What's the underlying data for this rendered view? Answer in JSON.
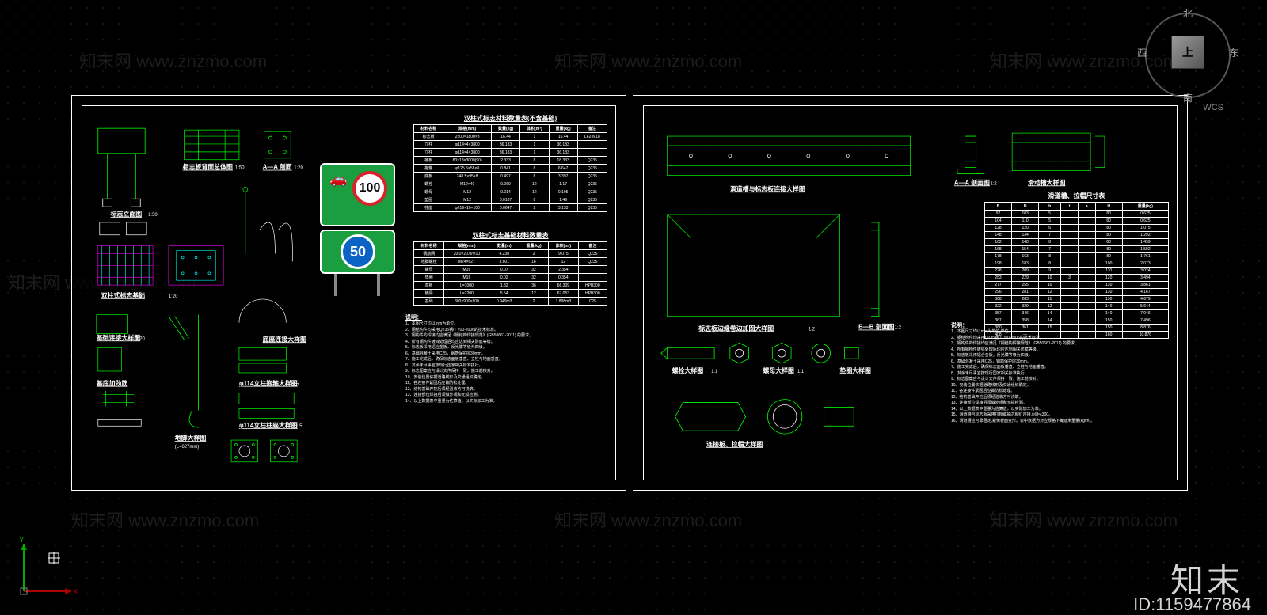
{
  "navcube": {
    "n": "北",
    "s": "南",
    "e": "东",
    "w": "西",
    "top": "上"
  },
  "wcs": "WCS",
  "ucs": {
    "x": "X",
    "y": "Y"
  },
  "watermark": {
    "brand": "知末",
    "id_prefix": "ID:",
    "id": "1159477864",
    "ghost": "知末网 www.znzmo.com"
  },
  "sheet1": {
    "titles": {
      "elevation": "标志立面图",
      "elevation_scale": "1:50",
      "plate_back": "标志板背面总体图",
      "plate_back_scale": "1:50",
      "section_a": "A—A 剖面",
      "section_a_scale": "1:20",
      "foundation": "双柱式标志基础",
      "foundation_scale": "1:20",
      "base_detail": "基础连接大样图",
      "base_detail_scale": "1:20",
      "anchor": "地脚大样图",
      "anchor_scale": "(L=627mm)",
      "reinforce": "基底加劲筋",
      "flange_col": "φ114立柱抱箍大样图",
      "flange_col_scale": "1:5",
      "flange_base": "φ114立柱柱座大样图",
      "flange_base_scale": "1:5",
      "bottom_flange": "底座连接大样图",
      "notes_head": "说明：",
      "table1_head": "双柱式标志材料数量表(不含基础)",
      "table2_head": "双柱式标志基础材料数量表",
      "t1_cols": [
        "材料名称",
        "规格(mm)",
        "数量(kg)",
        "体积(m³)",
        "重量(kg)",
        "备注"
      ],
      "t2_cols": [
        "材料名称",
        "规格(mm)",
        "数量(m)",
        "重量(kg)",
        "体积(m³)",
        "备注"
      ]
    },
    "sign": {
      "car_glyph": "🚗",
      "limit_big": "100",
      "limit_small": "50"
    },
    "table1_rows": [
      [
        "标志板",
        "2200×1800×3",
        "16.44",
        "1",
        "16.44",
        "LF2-M18"
      ],
      [
        "立柱",
        "φ114×4×3800",
        "36.183",
        "1",
        "36.183",
        ""
      ],
      [
        "立柱",
        "φ114×4×3800",
        "36.183",
        "1",
        "36.183",
        ""
      ],
      [
        "槽板",
        "80×18×3000(90)",
        "2.333",
        "8",
        "18.333",
        "Q235"
      ],
      [
        "抱箍",
        "φ125.5×58×8",
        "0.841",
        "8",
        "6.647",
        "Q235"
      ],
      [
        "底板",
        "248.5×95×8",
        "0.497",
        "8",
        "3.397",
        "Q235"
      ],
      [
        "螺栓",
        "M12×40",
        "0.069",
        "12",
        "1.17",
        "Q235"
      ],
      [
        "螺母",
        "M12",
        "0.014",
        "12",
        "0.195",
        "Q235"
      ],
      [
        "垫圈",
        "M12",
        "0.0187",
        "8",
        "1.49",
        "Q235"
      ],
      [
        "柱座",
        "φ219×10×100",
        "0.0647",
        "2",
        "3.133",
        "Q235"
      ]
    ],
    "table2_rows": [
      [
        "钢筋网",
        "20.0×20.0/Φ10",
        "4.238",
        "2",
        "9.075",
        "Q235"
      ],
      [
        "地脚螺栓",
        "M24×627",
        "3.601",
        "16",
        "12",
        "Q235"
      ],
      [
        "螺母",
        "M16",
        "0.07",
        "32",
        "2.354",
        ""
      ],
      [
        "垫圈",
        "M16",
        "0.02",
        "32",
        "0.354",
        ""
      ],
      [
        "基板",
        "L=1000",
        "1.82",
        "36",
        "66.309",
        "HPB300"
      ],
      [
        "横梁",
        "L=2200",
        "5.54",
        "12",
        "67.053",
        "HPB300"
      ],
      [
        "基础",
        "800×900×800",
        "0.949m3",
        "2",
        "1.898m3",
        "C25"
      ]
    ],
    "notes": [
      "1、本图尺寸均以mm为单位。",
      "2、钢结构件均采用Q235钢/T 700-2006的技术标准。",
      "3、钢构件的焊接均应满足《钢结构焊接规范》(GB50661-2011) 的要求。",
      "4、所有钢构件镀锌处理后均应达到相关防腐等级。",
      "5、标志板采用铝合金板，反光膜等级为四级。",
      "6、基础混凝土采用C25，钢筋保护层30mm。",
      "7、施工完成后，确保标志面板垂直、立柱与地面垂直。",
      "8、其余未尽事宜按现行国家相关标准执行。",
      "9、标志图案应与设计文件保持一致，施工前核对。",
      "10、安装位置依据道路线形及交通组织确定。",
      "11、各连接件紧固后应做防松处理。",
      "12、结构基础开挖后须经验收方可浇筑。",
      "13、连接部位焊接后须做外观和无损检测。",
      "14、以上数据表中重量为估算值，以实际加工为准。"
    ]
  },
  "sheet2": {
    "titles": {
      "slot_conn": "滑道槽与标志板连接大样图",
      "section_a": "A—A 剖面图",
      "section_a_scale": "1:2",
      "slide_detail": "滑动槽大样图",
      "plate_reinf": "标志板边缘卷边加固大样图",
      "plate_reinf_scale": "1:2",
      "section_b": "B—B 剖面图",
      "section_b_scale": "1:2",
      "bolt_det": "螺栓大样图",
      "bolt_det_scale": "1:1",
      "nut_det": "螺母大样图",
      "nut_det_scale": "1:1",
      "washer_det": "垫圈大样图",
      "washer_det_scale": "1:1",
      "rivet_det": "连接板、拉帽大样图",
      "dim_table_head": "滑道槽、拉帽尺寸表",
      "dim_cols": [
        "B",
        "D",
        "h",
        "t",
        "a",
        "H",
        "重量(kg)"
      ],
      "notes_head": "说明："
    },
    "dim_rows": [
      [
        "97",
        "103",
        "5",
        "",
        "",
        "80",
        "0.625"
      ],
      [
        "104",
        "110",
        "5",
        "",
        "",
        "80",
        "0.625"
      ],
      [
        "128",
        "120",
        "6",
        "",
        "",
        "80",
        "1.075"
      ],
      [
        "148",
        "134",
        "7",
        "",
        "",
        "80",
        "1.292"
      ],
      [
        "162",
        "148",
        "8",
        "",
        "",
        "80",
        "1.499"
      ],
      [
        "168",
        "154",
        "7",
        "",
        "",
        "80",
        "1.502"
      ],
      [
        "178",
        "163",
        "8",
        "",
        "",
        "80",
        "1.761"
      ],
      [
        "198",
        "183",
        "8",
        "",
        "",
        "100",
        "2.073"
      ],
      [
        "228",
        "209",
        "9",
        "",
        "",
        "110",
        "3.024"
      ],
      [
        "253",
        "229",
        "10",
        "3",
        "",
        "120",
        "3.494"
      ],
      [
        "277",
        "255",
        "10",
        "",
        "",
        "130",
        "3.861"
      ],
      [
        "296",
        "281",
        "12",
        "",
        "",
        "130",
        "4.167"
      ],
      [
        "308",
        "283",
        "11",
        "",
        "",
        "130",
        "4.679"
      ],
      [
        "322",
        "329",
        "12",
        "",
        "",
        "140",
        "5.644"
      ],
      [
        "357",
        "346",
        "14",
        "",
        "",
        "140",
        "7.046"
      ],
      [
        "367",
        "358",
        "14",
        "",
        "",
        "150",
        "7.496"
      ],
      [
        "380",
        "361",
        "15",
        "",
        "",
        "150",
        "8.876"
      ],
      [
        "408",
        "—",
        "",
        "",
        "",
        "160",
        "10.876"
      ]
    ],
    "notes": [
      "1、本图尺寸均以mm为单位,单位。",
      "2、钢结构件均采用Q235钢/T 700-2006的技术标准。",
      "3、钢构件的焊接均应满足《钢结构焊接规范》(GB50661-2011) 的要求。",
      "4、所有钢构件镀锌处理后均应达到相关防腐等级。",
      "5、标志板采用铝合金板，反光膜等级为四级。",
      "6、基础混凝土采用C25，钢筋保护层30mm。",
      "7、施工完成后，确保标志面板垂直、立柱与地面垂直。",
      "8、其余未尽事宜按现行国家相关标准执行。",
      "9、标志图案应与设计文件保持一致，施工前核对。",
      "10、安装位置依据道路线形及交通组织确定。",
      "11、各连接件紧固后应做防松处理。",
      "12、结构基础开挖后须经验收方可浇筑。",
      "13、连接部位焊接后须做外观和无损检测。",
      "14、以上数据表中重量为估算值，以实际加工为准。",
      "15、滑道槽与标志板采用拉帽或抽芯铆钉连接,间距≤300。",
      "16、滑道槽应可靠固定,避免板面变形。表中数据为对应规格下每延米重量(kg/m)。"
    ]
  },
  "colors": {
    "green": "#00ff00",
    "cyan": "#00ffff",
    "magenta": "#ff00ff",
    "yellow": "#ffff00",
    "white": "#ffffff",
    "sign_green": "#1a9e3f",
    "sign_blue": "#0b63c4",
    "sign_red": "#d8232a"
  }
}
